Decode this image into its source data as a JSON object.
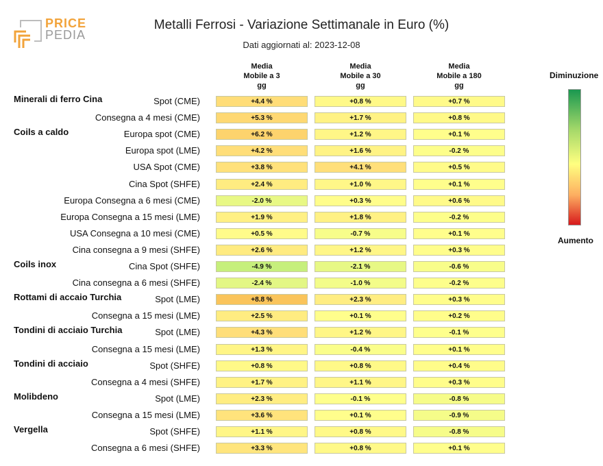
{
  "header": {
    "logo_price": "PRICE",
    "logo_pedia": "PEDIA",
    "title": "Metalli Ferrosi - Variazione Settimanale in Euro (%)",
    "subtitle": "Dati aggiornati al: 2023-12-08"
  },
  "legend": {
    "top_label": "Diminuzione",
    "bottom_label": "Aumento"
  },
  "chart_data": {
    "type": "table",
    "title": "Metalli Ferrosi - Variazione Settimanale in Euro (%)",
    "subtitle": "Dati aggiornati al: 2023-12-08",
    "columns": [
      "Media\nMobile a 3\ngg",
      "Media\nMobile a 30\ngg",
      "Media\nMobile a 180\ngg"
    ],
    "color_scale": {
      "low_color": "#1a9850",
      "mid_color": "#ffff80",
      "high_color": "#d7191c",
      "low_label": "Diminuzione",
      "high_label": "Aumento"
    },
    "rows": [
      {
        "group": "Minerali di ferro Cina",
        "label": "Spot (CME)",
        "values": [
          4.4,
          0.8,
          0.7
        ],
        "texts": [
          "+4.4 %",
          "+0.8 %",
          "+0.7 %"
        ]
      },
      {
        "group": "",
        "label": "Consegna a 4 mesi (CME)",
        "values": [
          5.3,
          1.7,
          0.8
        ],
        "texts": [
          "+5.3 %",
          "+1.7 %",
          "+0.8 %"
        ]
      },
      {
        "group": "Coils a caldo",
        "label": "Europa spot (CME)",
        "values": [
          6.2,
          1.2,
          0.1
        ],
        "texts": [
          "+6.2 %",
          "+1.2 %",
          "+0.1 %"
        ]
      },
      {
        "group": "",
        "label": "Europa spot (LME)",
        "values": [
          4.2,
          1.6,
          -0.2
        ],
        "texts": [
          "+4.2 %",
          "+1.6 %",
          "-0.2 %"
        ]
      },
      {
        "group": "",
        "label": "USA Spot (CME)",
        "values": [
          3.8,
          4.1,
          0.5
        ],
        "texts": [
          "+3.8 %",
          "+4.1 %",
          "+0.5 %"
        ]
      },
      {
        "group": "",
        "label": "Cina Spot (SHFE)",
        "values": [
          2.4,
          1.0,
          0.1
        ],
        "texts": [
          "+2.4 %",
          "+1.0 %",
          "+0.1 %"
        ]
      },
      {
        "group": "",
        "label": "Europa Consegna a 6 mesi (CME)",
        "values": [
          -2.0,
          0.3,
          0.6
        ],
        "texts": [
          "-2.0 %",
          "+0.3 %",
          "+0.6 %"
        ]
      },
      {
        "group": "",
        "label": "Europa Consegna a 15 mesi (LME)",
        "values": [
          1.9,
          1.8,
          -0.2
        ],
        "texts": [
          "+1.9 %",
          "+1.8 %",
          "-0.2 %"
        ]
      },
      {
        "group": "",
        "label": "USA Consegna a 10 mesi (CME)",
        "values": [
          0.5,
          -0.7,
          0.1
        ],
        "texts": [
          "+0.5 %",
          "-0.7 %",
          "+0.1 %"
        ]
      },
      {
        "group": "",
        "label": "Cina consegna a 9 mesi (SHFE)",
        "values": [
          2.6,
          1.2,
          0.3
        ],
        "texts": [
          "+2.6 %",
          "+1.2 %",
          "+0.3 %"
        ]
      },
      {
        "group": "Coils inox",
        "label": "Cina Spot (SHFE)",
        "values": [
          -4.9,
          -2.1,
          -0.6
        ],
        "texts": [
          "-4.9 %",
          "-2.1 %",
          "-0.6 %"
        ]
      },
      {
        "group": "",
        "label": "Cina consegna a 6 mesi (SHFE)",
        "values": [
          -2.4,
          -1.0,
          -0.2
        ],
        "texts": [
          "-2.4 %",
          "-1.0 %",
          "-0.2 %"
        ]
      },
      {
        "group": "Rottami di accaio Turchia",
        "label": "Spot (LME)",
        "values": [
          8.8,
          2.3,
          0.3
        ],
        "texts": [
          "+8.8 %",
          "+2.3 %",
          "+0.3 %"
        ]
      },
      {
        "group": "",
        "label": "Consegna a 15 mesi (LME)",
        "values": [
          2.5,
          0.1,
          0.2
        ],
        "texts": [
          "+2.5 %",
          "+0.1 %",
          "+0.2 %"
        ]
      },
      {
        "group": "Tondini di acciaio Turchia",
        "label": "Spot (LME)",
        "values": [
          4.3,
          1.2,
          -0.1
        ],
        "texts": [
          "+4.3 %",
          "+1.2 %",
          "-0.1 %"
        ]
      },
      {
        "group": "",
        "label": "Consegna a 15 mesi (LME)",
        "values": [
          1.3,
          -0.4,
          0.1
        ],
        "texts": [
          "+1.3 %",
          "-0.4 %",
          "+0.1 %"
        ]
      },
      {
        "group": "Tondini di acciaio",
        "label": "Spot (SHFE)",
        "values": [
          0.8,
          0.8,
          0.4
        ],
        "texts": [
          "+0.8 %",
          "+0.8 %",
          "+0.4 %"
        ]
      },
      {
        "group": "",
        "label": "Consegna a 4 mesi (SHFE)",
        "values": [
          1.7,
          1.1,
          0.3
        ],
        "texts": [
          "+1.7 %",
          "+1.1 %",
          "+0.3 %"
        ]
      },
      {
        "group": "Molibdeno",
        "label": "Spot (LME)",
        "values": [
          2.3,
          -0.1,
          -0.8
        ],
        "texts": [
          "+2.3 %",
          "-0.1 %",
          "-0.8 %"
        ]
      },
      {
        "group": "",
        "label": "Consegna a 15 mesi (LME)",
        "values": [
          3.6,
          0.1,
          -0.9
        ],
        "texts": [
          "+3.6 %",
          "+0.1 %",
          "-0.9 %"
        ]
      },
      {
        "group": "Vergella",
        "label": "Spot (SHFE)",
        "values": [
          1.1,
          0.8,
          -0.8
        ],
        "texts": [
          "+1.1 %",
          "+0.8 %",
          "-0.8 %"
        ]
      },
      {
        "group": "",
        "label": "Consegna a 6 mesi (SHFE)",
        "values": [
          3.3,
          0.8,
          0.1
        ],
        "texts": [
          "+3.3 %",
          "+0.8 %",
          "+0.1 %"
        ]
      }
    ]
  }
}
